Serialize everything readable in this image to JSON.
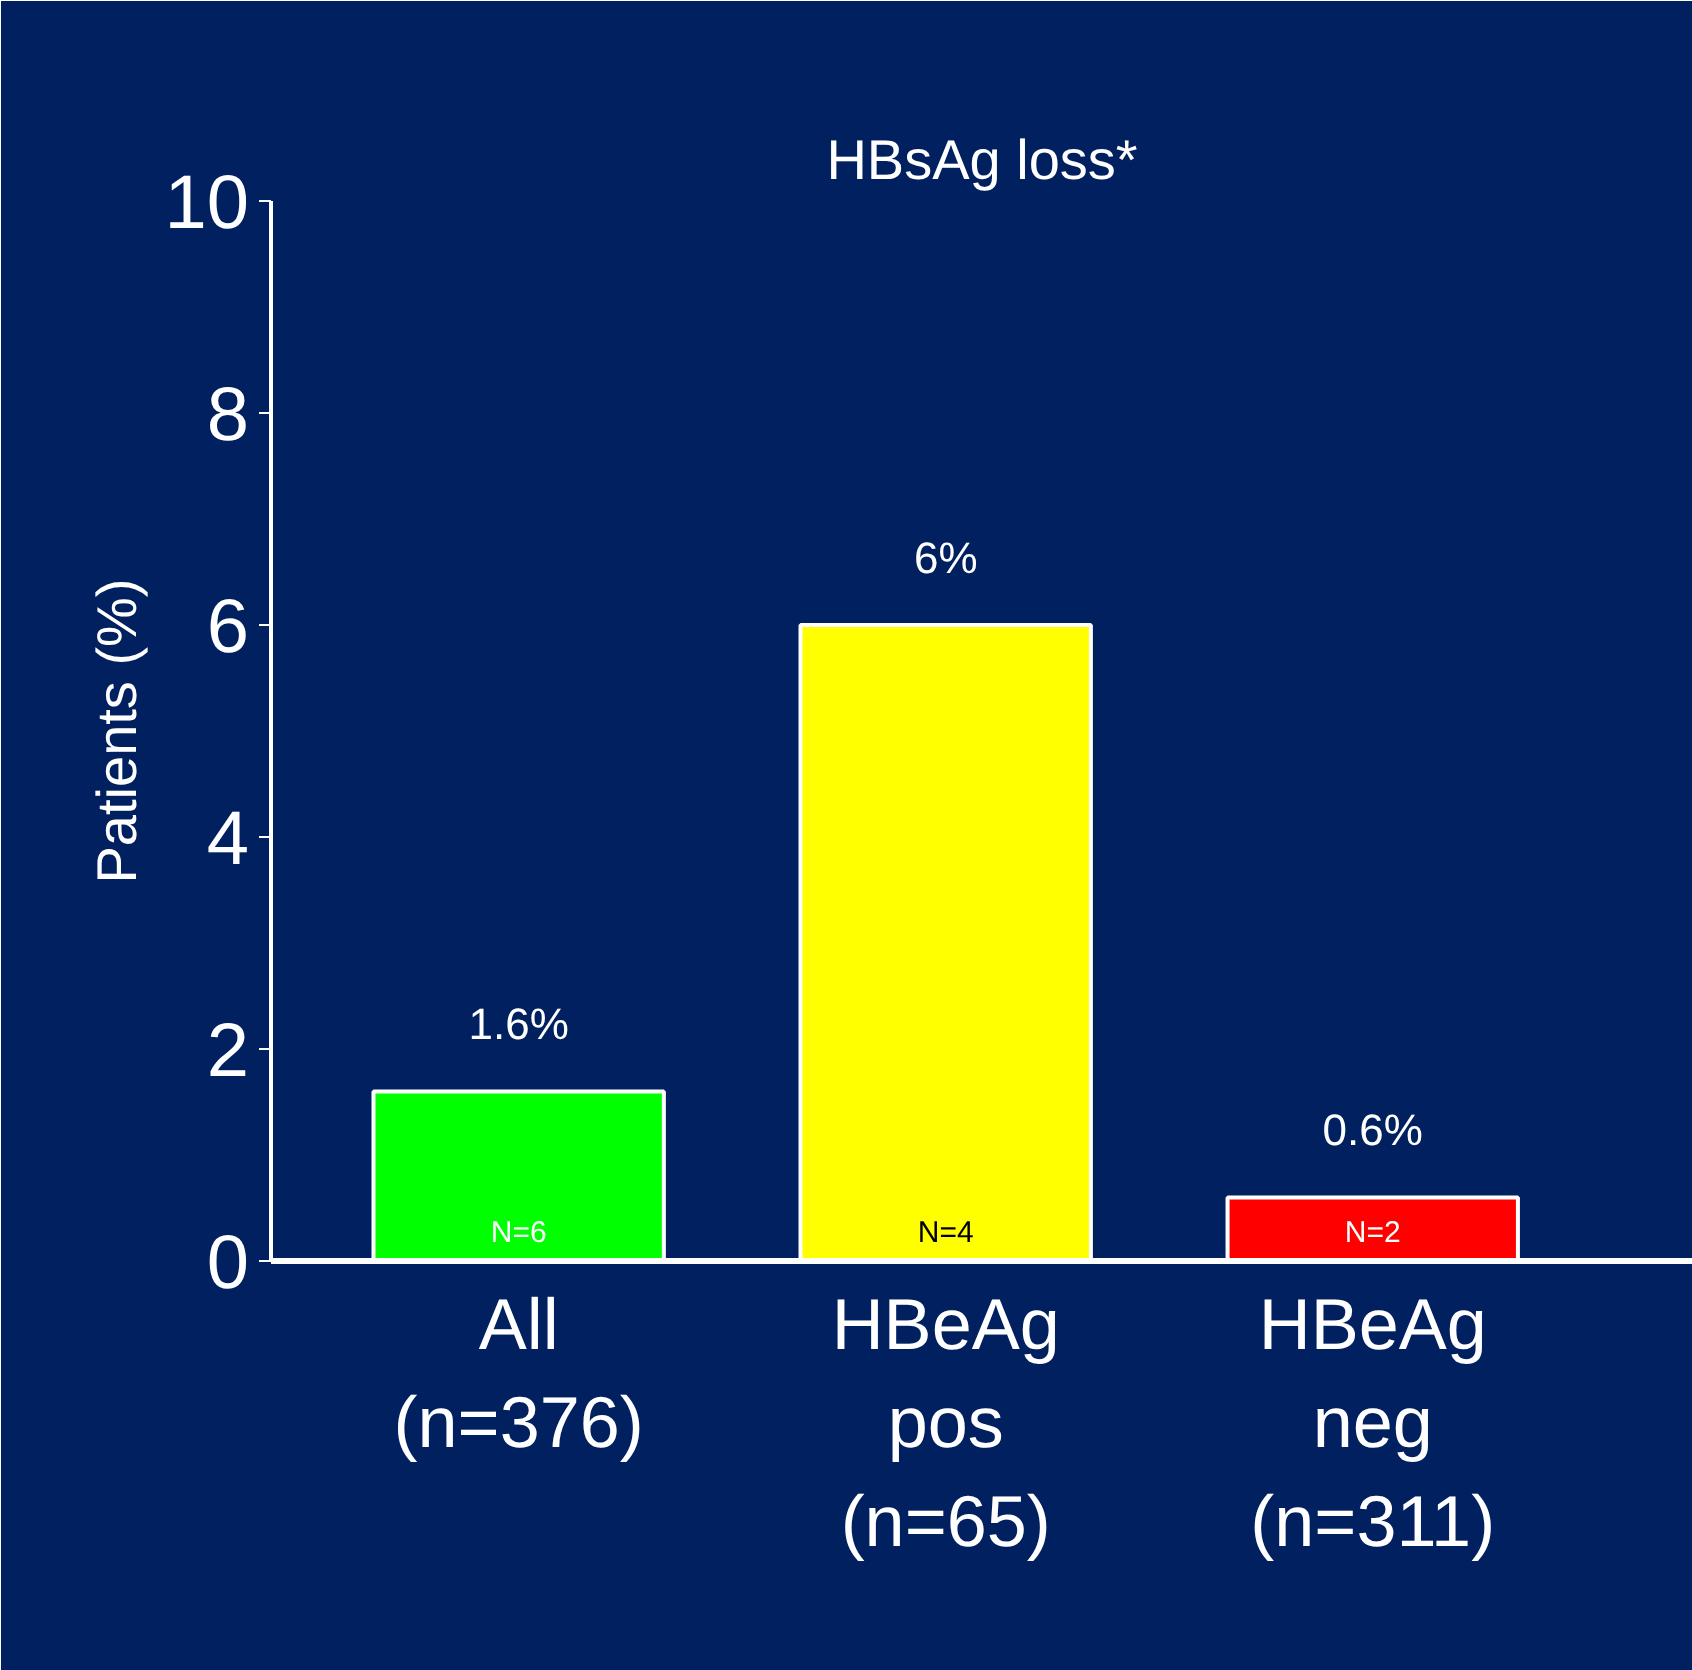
{
  "chart_data": {
    "type": "bar",
    "title": "HBsAg loss*",
    "ylabel": "Patients (%)",
    "categories": [
      "All (n=376)",
      "HBeAg pos (n=65)",
      "HBeAg neg (n=311)"
    ],
    "values": [
      1.6,
      6,
      0.6
    ],
    "colors": [
      "#00ff00",
      "#ffff00",
      "#ff0000"
    ],
    "value_labels": [
      "1.6%",
      "6%",
      "0.6%"
    ],
    "annotations": [
      "N=6",
      "N=4",
      "N=2"
    ],
    "ylim": [
      0,
      10
    ],
    "yticks": [
      0,
      2,
      4,
      6,
      8,
      10
    ],
    "grid": false
  }
}
